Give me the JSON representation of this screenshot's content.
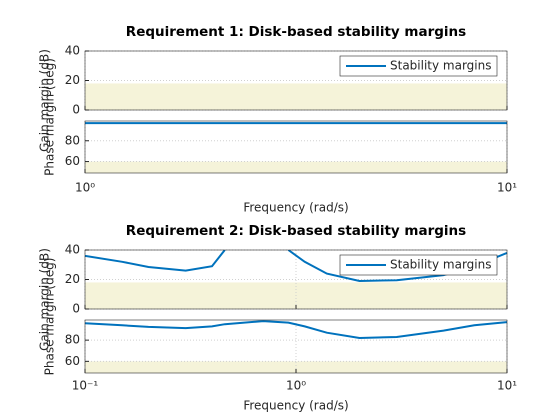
{
  "chart_data": [
    {
      "type": "line",
      "title": "Requirement 1: Disk-based stability margins",
      "xlabel": "Frequency (rad/s)",
      "xscale": "log",
      "grid": true,
      "xlim": [
        1,
        10
      ],
      "xticks": [
        {
          "value": 1,
          "label": "10⁰"
        },
        {
          "value": 10,
          "label": "10¹"
        }
      ],
      "x": [
        1,
        10
      ],
      "gain": {
        "ylabel": "Gain margin (dB)",
        "ylim": [
          0,
          40
        ],
        "yticks": [
          0,
          20,
          40
        ],
        "band": [
          0,
          18
        ],
        "band_color": "#f5f3d9",
        "series": [
          {
            "name": "Stability margins",
            "color": "#0072bd",
            "values": [
              null,
              null
            ]
          }
        ]
      },
      "phase": {
        "ylabel": "Phase margin (deg)",
        "ylim": [
          49,
          99
        ],
        "yticks": [
          60,
          80
        ],
        "band": [
          49,
          60
        ],
        "band_color": "#f5f3d9",
        "series": [
          {
            "color": "#0072bd",
            "values": [
              97,
              97
            ]
          }
        ]
      }
    },
    {
      "type": "line",
      "title": "Requirement 2: Disk-based stability margins",
      "xlabel": "Frequency (rad/s)",
      "xscale": "log",
      "grid": true,
      "xlim": [
        0.1,
        10
      ],
      "xticks": [
        {
          "value": 0.1,
          "label": "10⁻¹"
        },
        {
          "value": 1,
          "label": "10⁰"
        },
        {
          "value": 10,
          "label": "10¹"
        }
      ],
      "x": [
        0.1,
        0.15,
        0.2,
        0.3,
        0.4,
        0.46,
        0.7,
        0.92,
        1.1,
        1.4,
        2,
        3,
        5,
        7,
        10
      ],
      "gain": {
        "ylabel": "Gain margin (dB)",
        "ylim": [
          0,
          40
        ],
        "yticks": [
          0,
          20,
          40
        ],
        "band": [
          0,
          18
        ],
        "band_color": "#f5f3d9",
        "series": [
          {
            "name": "Stability margins",
            "color": "#0072bd",
            "values": [
              36,
              32,
              28.5,
              26,
              29,
              40,
              null,
              40,
              32,
              24,
              19,
              19.5,
              23,
              29,
              38
            ]
          }
        ]
      },
      "phase": {
        "ylabel": "Phase margin (deg)",
        "ylim": [
          49,
          99
        ],
        "yticks": [
          60,
          80
        ],
        "band": [
          49,
          60
        ],
        "band_color": "#f5f3d9",
        "series": [
          {
            "color": "#0072bd",
            "values": [
              96,
              94,
              92.5,
              91.4,
              93,
              95,
              98,
              96.5,
              93,
              87,
              82,
              83,
              89,
              94,
              97
            ]
          }
        ]
      }
    }
  ]
}
